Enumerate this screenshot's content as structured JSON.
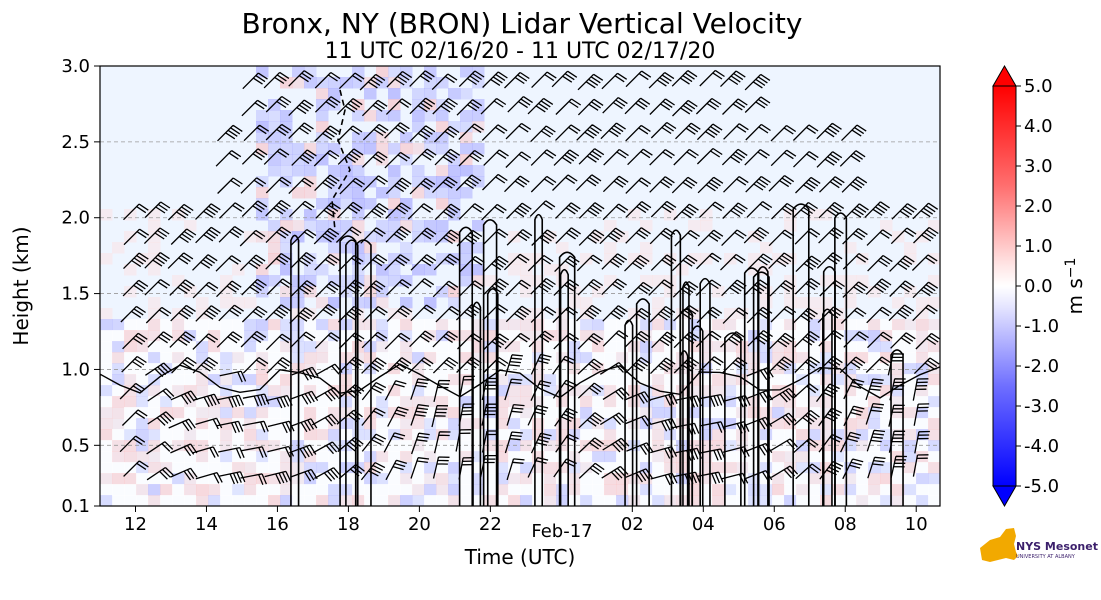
{
  "chart_data": {
    "type": "heatmap",
    "title": "Bronx, NY (BRON) Lidar Vertical Velocity",
    "subtitle": "11 UTC 02/16/20 - 11 UTC 02/17/20",
    "xlabel": "Time (UTC)",
    "ylabel": "Height (km)",
    "x_ticks": [
      "12",
      "14",
      "16",
      "18",
      "20",
      "22",
      "02",
      "04",
      "06",
      "08",
      "10"
    ],
    "x_date_label": "Feb-17",
    "y_ticks": [
      "0.1",
      "0.5",
      "1.0",
      "1.5",
      "2.0",
      "2.5",
      "3.0"
    ],
    "ylim": [
      0.1,
      3.0
    ],
    "grid": "horizontal dashed",
    "colorbar": {
      "label": "m s",
      "label_superscript": "−1",
      "ticks": [
        "5.0",
        "4.0",
        "3.0",
        "2.0",
        "1.0",
        "0.0",
        "-1.0",
        "-2.0",
        "-3.0",
        "-4.0",
        "-5.0"
      ],
      "range": [
        -5.0,
        5.0
      ],
      "colors": {
        "max": "#ff0000",
        "zero": "#ffffff",
        "min": "#0000ff"
      }
    },
    "overlays": [
      "wind barbs",
      "black contours"
    ]
  },
  "logo": {
    "text": "NYS Mesonet",
    "sub": "UNIVERSITY AT ALBANY"
  }
}
